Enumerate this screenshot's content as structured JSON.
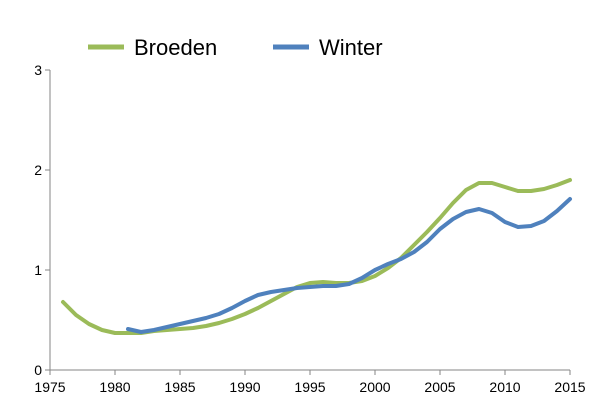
{
  "chart_data": {
    "type": "line",
    "title": "",
    "xlabel": "",
    "ylabel": "",
    "xlim": [
      1975,
      2015
    ],
    "ylim": [
      0,
      3
    ],
    "x_ticks": [
      1975,
      1980,
      1985,
      1990,
      1995,
      2000,
      2005,
      2010,
      2015
    ],
    "y_ticks": [
      0,
      1,
      2,
      3
    ],
    "grid": false,
    "legend_position": "top",
    "series": [
      {
        "name": "Broeden",
        "color": "#9bbb59",
        "x": [
          1976,
          1977,
          1978,
          1979,
          1980,
          1981,
          1982,
          1983,
          1984,
          1985,
          1986,
          1987,
          1988,
          1989,
          1990,
          1991,
          1992,
          1993,
          1994,
          1995,
          1996,
          1997,
          1998,
          1999,
          2000,
          2001,
          2002,
          2003,
          2004,
          2005,
          2006,
          2007,
          2008,
          2009,
          2010,
          2011,
          2012,
          2013,
          2014,
          2015
        ],
        "values": [
          0.68,
          0.55,
          0.46,
          0.4,
          0.37,
          0.37,
          0.37,
          0.39,
          0.4,
          0.41,
          0.42,
          0.44,
          0.47,
          0.51,
          0.56,
          0.62,
          0.69,
          0.76,
          0.83,
          0.87,
          0.88,
          0.87,
          0.87,
          0.89,
          0.94,
          1.02,
          1.12,
          1.25,
          1.38,
          1.52,
          1.67,
          1.8,
          1.87,
          1.87,
          1.83,
          1.79,
          1.79,
          1.81,
          1.85,
          1.9
        ]
      },
      {
        "name": "Winter",
        "color": "#4f81bd",
        "x": [
          1981,
          1982,
          1983,
          1984,
          1985,
          1986,
          1987,
          1988,
          1989,
          1990,
          1991,
          1992,
          1993,
          1994,
          1995,
          1996,
          1997,
          1998,
          1999,
          2000,
          2001,
          2002,
          2003,
          2004,
          2005,
          2006,
          2007,
          2008,
          2009,
          2010,
          2011,
          2012,
          2013,
          2014,
          2015
        ],
        "values": [
          0.41,
          0.38,
          0.4,
          0.43,
          0.46,
          0.49,
          0.52,
          0.56,
          0.62,
          0.69,
          0.75,
          0.78,
          0.8,
          0.82,
          0.83,
          0.84,
          0.84,
          0.86,
          0.92,
          1.0,
          1.06,
          1.11,
          1.18,
          1.28,
          1.41,
          1.51,
          1.58,
          1.61,
          1.57,
          1.48,
          1.43,
          1.44,
          1.49,
          1.59,
          1.71
        ]
      }
    ]
  }
}
